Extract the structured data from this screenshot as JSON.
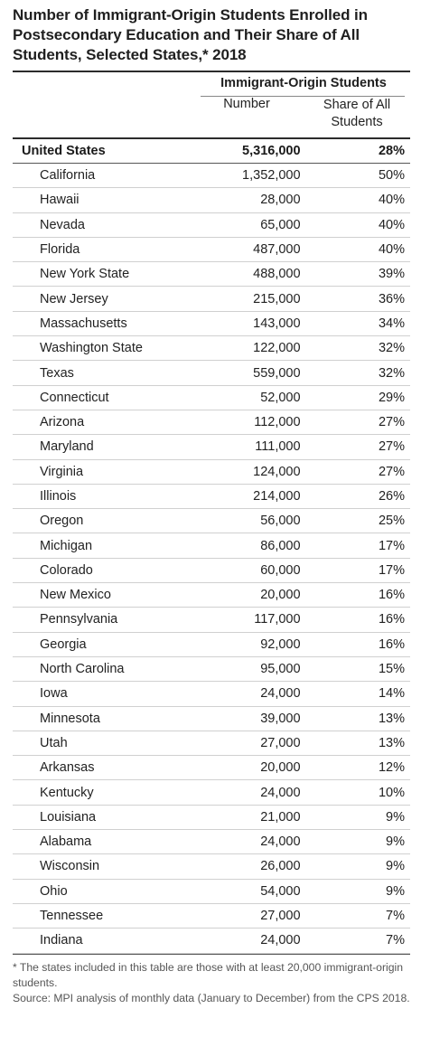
{
  "title": "Number of Immigrant-Origin Students Enrolled in Postsecondary Education and Their Share of All Students, Selected States,* 2018",
  "header": {
    "group": "Immigrant-Origin Students",
    "number": "Number",
    "share_line1": "Share of All",
    "share_line2": "Students"
  },
  "total": {
    "name": "United States",
    "number": "5,316,000",
    "share": "28%"
  },
  "rows": [
    {
      "name": "California",
      "number": "1,352,000",
      "share": "50%"
    },
    {
      "name": "Hawaii",
      "number": "28,000",
      "share": "40%"
    },
    {
      "name": "Nevada",
      "number": "65,000",
      "share": "40%"
    },
    {
      "name": "Florida",
      "number": "487,000",
      "share": "40%"
    },
    {
      "name": "New York State",
      "number": "488,000",
      "share": "39%"
    },
    {
      "name": "New Jersey",
      "number": "215,000",
      "share": "36%"
    },
    {
      "name": "Massachusetts",
      "number": "143,000",
      "share": "34%"
    },
    {
      "name": "Washington State",
      "number": "122,000",
      "share": "32%"
    },
    {
      "name": "Texas",
      "number": "559,000",
      "share": "32%"
    },
    {
      "name": "Connecticut",
      "number": "52,000",
      "share": "29%"
    },
    {
      "name": "Arizona",
      "number": "112,000",
      "share": "27%"
    },
    {
      "name": "Maryland",
      "number": "111,000",
      "share": "27%"
    },
    {
      "name": "Virginia",
      "number": "124,000",
      "share": "27%"
    },
    {
      "name": "Illinois",
      "number": "214,000",
      "share": "26%"
    },
    {
      "name": "Oregon",
      "number": "56,000",
      "share": "25%"
    },
    {
      "name": "Michigan",
      "number": "86,000",
      "share": "17%"
    },
    {
      "name": "Colorado",
      "number": "60,000",
      "share": "17%"
    },
    {
      "name": "New Mexico",
      "number": "20,000",
      "share": "16%"
    },
    {
      "name": "Pennsylvania",
      "number": "117,000",
      "share": "16%"
    },
    {
      "name": "Georgia",
      "number": "92,000",
      "share": "16%"
    },
    {
      "name": "North Carolina",
      "number": "95,000",
      "share": "15%"
    },
    {
      "name": "Iowa",
      "number": "24,000",
      "share": "14%"
    },
    {
      "name": "Minnesota",
      "number": "39,000",
      "share": "13%"
    },
    {
      "name": "Utah",
      "number": "27,000",
      "share": "13%"
    },
    {
      "name": "Arkansas",
      "number": "20,000",
      "share": "12%"
    },
    {
      "name": "Kentucky",
      "number": "24,000",
      "share": "10%"
    },
    {
      "name": "Louisiana",
      "number": "21,000",
      "share": "9%"
    },
    {
      "name": "Alabama",
      "number": "24,000",
      "share": "9%"
    },
    {
      "name": "Wisconsin",
      "number": "26,000",
      "share": "9%"
    },
    {
      "name": "Ohio",
      "number": "54,000",
      "share": "9%"
    },
    {
      "name": "Tennessee",
      "number": "27,000",
      "share": "7%"
    },
    {
      "name": "Indiana",
      "number": "24,000",
      "share": "7%"
    }
  ],
  "notes": {
    "footnote": "* The states included in this table are those with at least 20,000 immigrant-origin students.",
    "source": "Source: MPI analysis of monthly data (January to December) from the CPS 2018."
  }
}
